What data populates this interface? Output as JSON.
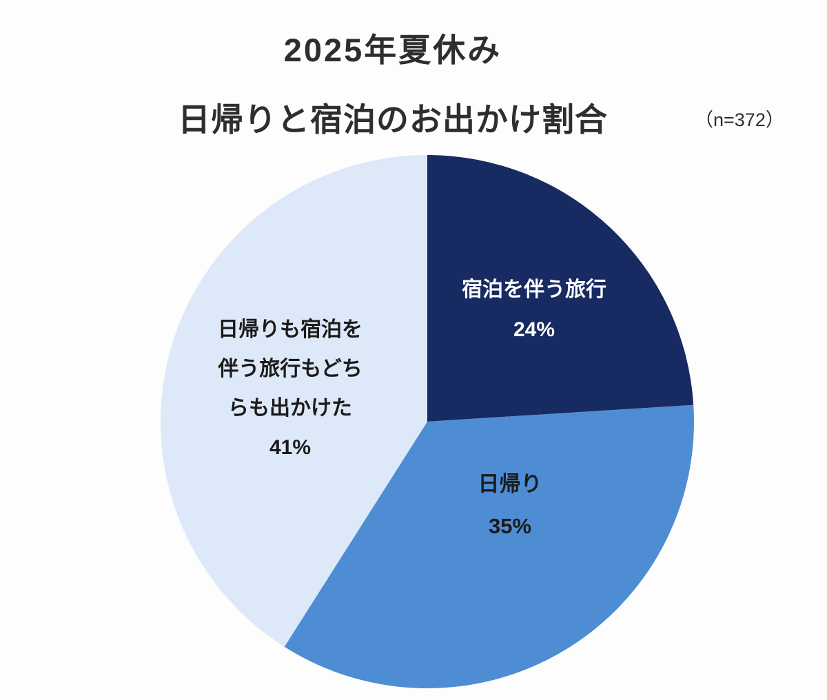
{
  "page": {
    "background": "#fdfdfd"
  },
  "header": {
    "title_line1": "2025年夏休み",
    "title_line2": "日帰りと宿泊のお出かけ割合",
    "sample_size": "（n=372）"
  },
  "chart_data": {
    "type": "pie",
    "title": "2025年夏休み 日帰りと宿泊のお出かけ割合",
    "sample_size": "n=372",
    "start_angle": "top",
    "direction": "clockwise",
    "unit": "%",
    "legend_position": "labels-on-slices",
    "slices": [
      {
        "label": "宿泊を伴う旅行",
        "value": 24,
        "pct_label": "24%",
        "color": "#172a61",
        "label_color": "#ffffff"
      },
      {
        "label": "日帰り",
        "value": 35,
        "pct_label": "35%",
        "color": "#4e8dd3",
        "label_color": "#1b1b1b"
      },
      {
        "label": "日帰りも宿泊を伴う旅行もどちらも出かけた",
        "value": 41,
        "pct_label": "41%",
        "color": "#dde9f8",
        "label_color": "#1b1b1b",
        "label_lines": [
          "日帰りも宿泊を",
          "伴う旅行もどち",
          "らも出かけた"
        ]
      }
    ]
  }
}
